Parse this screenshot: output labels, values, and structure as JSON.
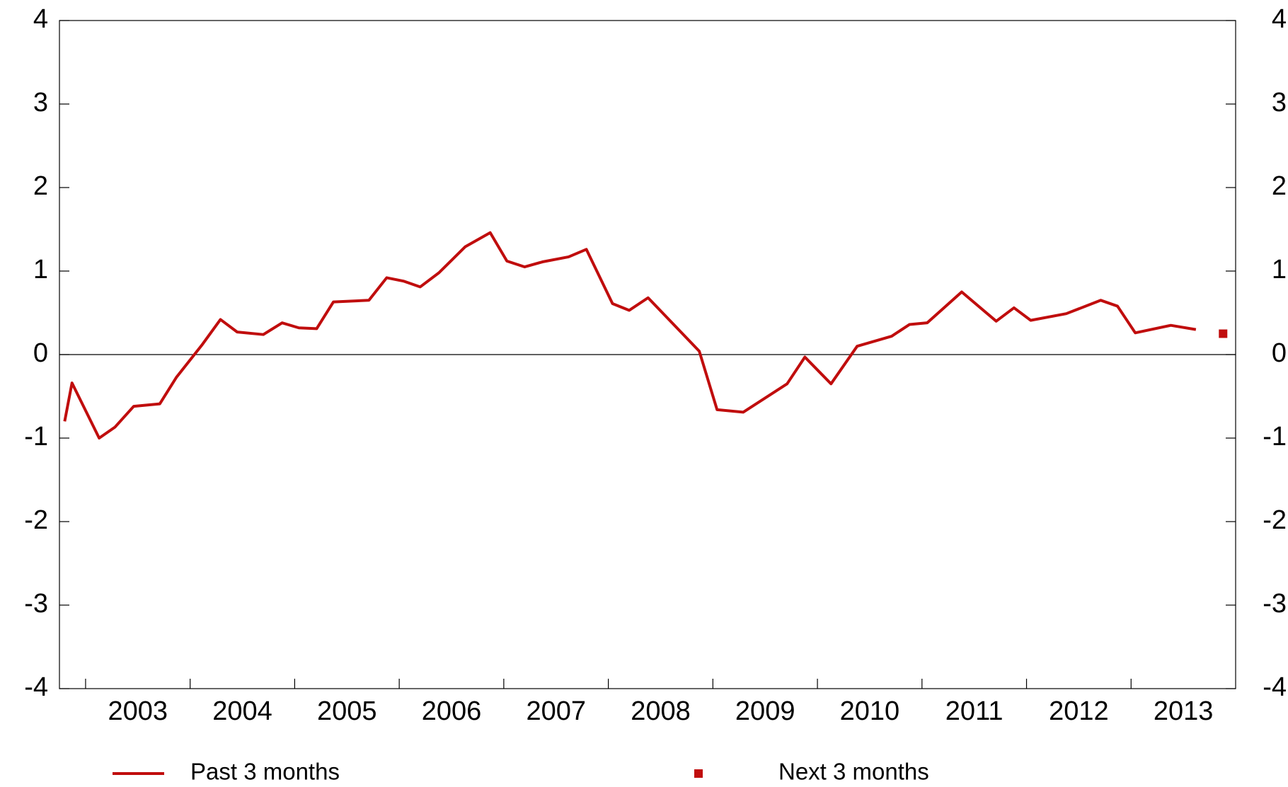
{
  "chart_data": {
    "type": "line",
    "xlim": [
      2002.75,
      2014.0
    ],
    "xticks": [
      2003,
      2004,
      2005,
      2006,
      2007,
      2008,
      2009,
      2010,
      2011,
      2012,
      2013
    ],
    "ylim": [
      -4,
      4
    ],
    "yticks": [
      -4,
      -3,
      -2,
      -1,
      0,
      1,
      2,
      3,
      4
    ],
    "y2lim": [
      -4,
      4
    ],
    "y2ticks": [
      -4,
      -3,
      -2,
      -1,
      0,
      1,
      2,
      3,
      4
    ],
    "zero_line": true,
    "series": [
      {
        "name": "Past 3 months",
        "color": "#c00d0d",
        "kind": "line",
        "x": [
          2002.8,
          2002.87,
          2003.13,
          2003.28,
          2003.46,
          2003.71,
          2003.87,
          2004.11,
          2004.29,
          2004.45,
          2004.7,
          2004.88,
          2005.04,
          2005.21,
          2005.37,
          2005.71,
          2005.88,
          2006.04,
          2006.2,
          2006.38,
          2006.63,
          2006.87,
          2007.03,
          2007.2,
          2007.37,
          2007.62,
          2007.79,
          2008.04,
          2008.2,
          2008.38,
          2008.87,
          2009.04,
          2009.29,
          2009.71,
          2009.88,
          2010.13,
          2010.38,
          2010.71,
          2010.88,
          2011.05,
          2011.38,
          2011.71,
          2011.88,
          2012.04,
          2012.38,
          2012.71,
          2012.87,
          2013.04,
          2013.38,
          2013.62
        ],
        "values": [
          -0.8,
          -0.34,
          -1.0,
          -0.87,
          -0.62,
          -0.59,
          -0.27,
          0.11,
          0.42,
          0.27,
          0.24,
          0.38,
          0.32,
          0.31,
          0.63,
          0.65,
          0.92,
          0.88,
          0.81,
          0.98,
          1.29,
          1.46,
          1.12,
          1.05,
          1.11,
          1.17,
          1.26,
          0.61,
          0.53,
          0.68,
          0.04,
          -0.66,
          -0.69,
          -0.35,
          -0.03,
          -0.35,
          0.1,
          0.22,
          0.36,
          0.38,
          0.75,
          0.4,
          0.56,
          0.41,
          0.49,
          0.65,
          0.58,
          0.26,
          0.35,
          0.3
        ]
      },
      {
        "name": "Next 3 months",
        "color": "#c00d0d",
        "kind": "point",
        "x": [
          2013.88
        ],
        "values": [
          0.25
        ]
      }
    ]
  }
}
